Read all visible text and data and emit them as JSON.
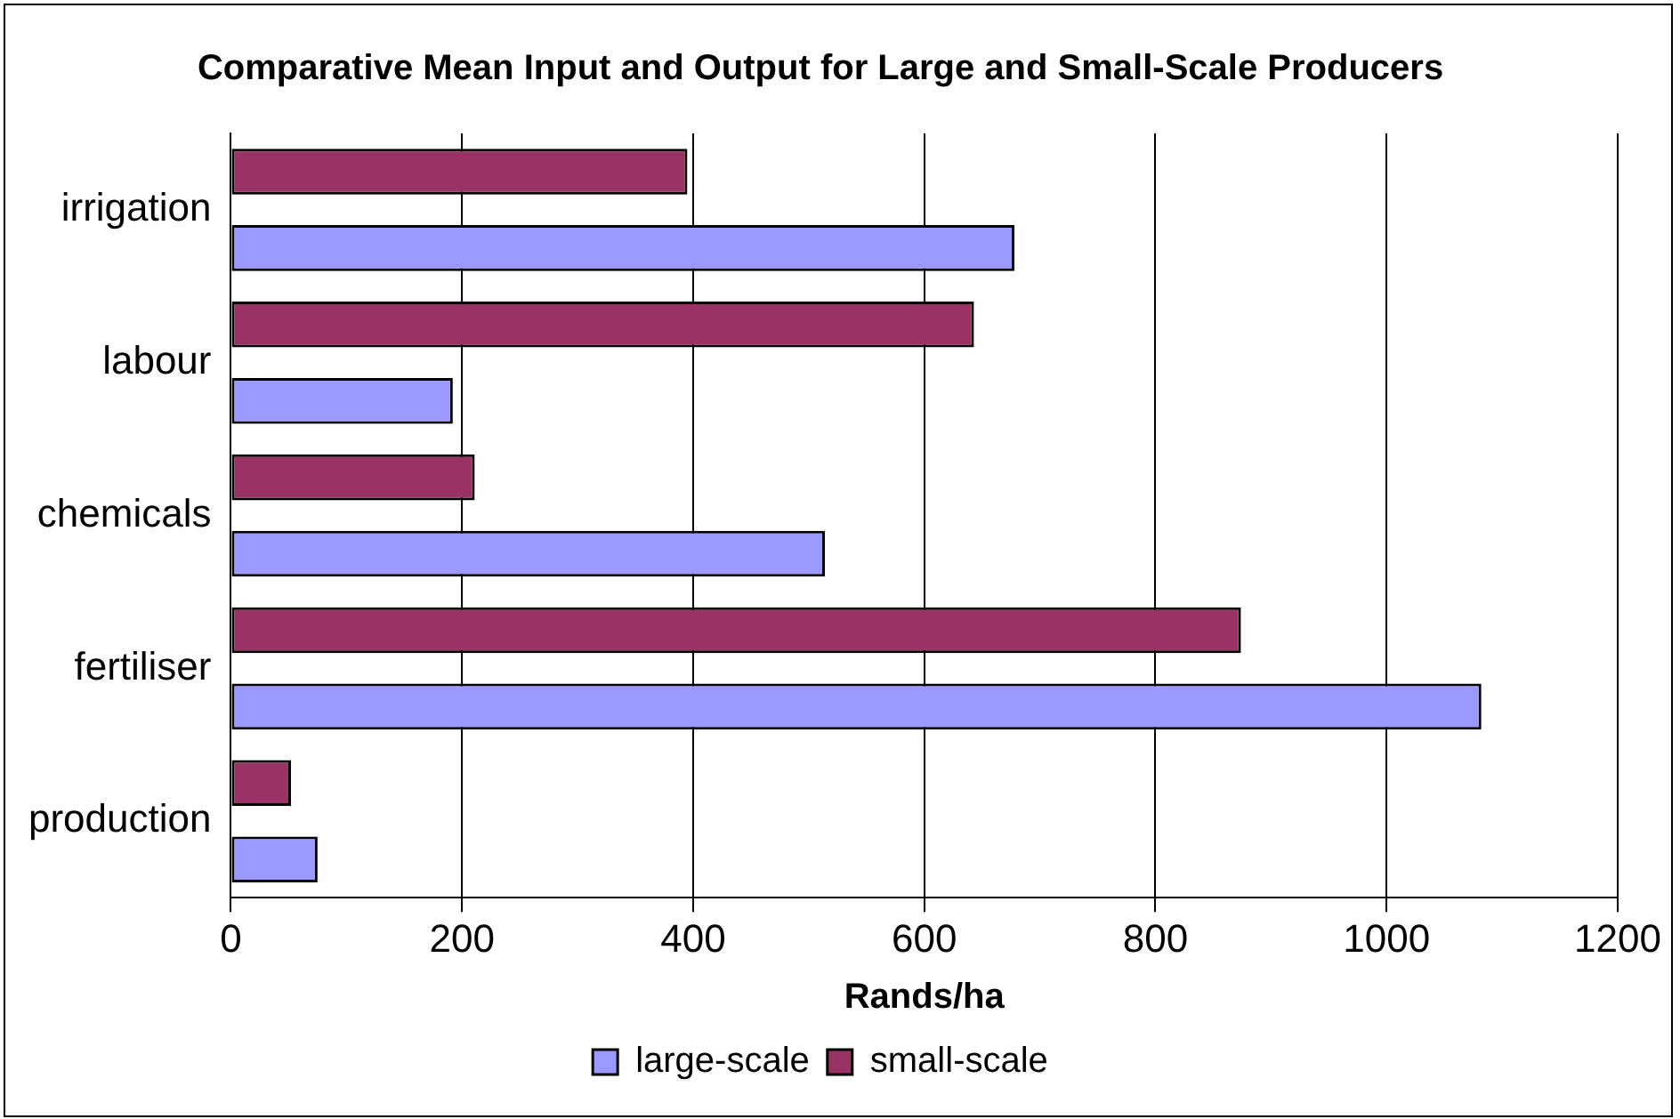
{
  "chart_data": {
    "type": "bar",
    "orientation": "horizontal",
    "title": "Comparative Mean Input and Output for Large and Small-Scale Producers",
    "xlabel": "Rands/ha",
    "categories": [
      "irrigation",
      "labour",
      "chemicals",
      "fertiliser",
      "production"
    ],
    "series": [
      {
        "name": "large-scale",
        "color": "#9999ff",
        "values": [
          678,
          192,
          514,
          1082,
          75
        ]
      },
      {
        "name": "small-scale",
        "color": "#993366",
        "values": [
          395,
          643,
          211,
          874,
          52
        ]
      }
    ],
    "xlim": [
      0,
      1200
    ],
    "xticks": [
      0,
      200,
      400,
      600,
      800,
      1000,
      1200
    ],
    "grid": "x",
    "legend": "bottom"
  }
}
